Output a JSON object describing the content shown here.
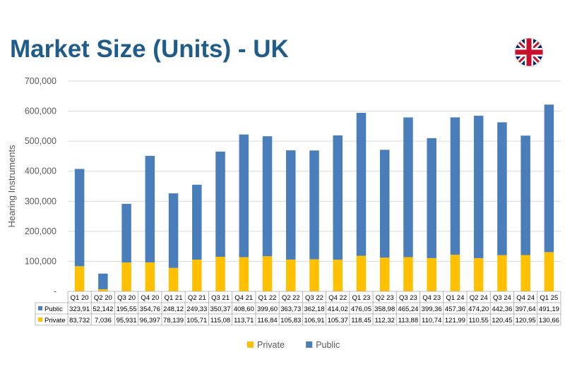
{
  "page": {
    "title": "Market Size (Units) - UK"
  },
  "colors": {
    "title": "#1f5c8a",
    "public": "#4a7ebb",
    "private": "#ffc000",
    "grid": "#d9d9d9"
  },
  "icons": {
    "flag": "uk-flag-icon"
  },
  "chart_data": {
    "type": "bar",
    "stacked": true,
    "title": "",
    "xlabel": "",
    "ylabel": "Hearing Instruments",
    "ylim": [
      0,
      700000
    ],
    "yticks": [
      0,
      100000,
      200000,
      300000,
      400000,
      500000,
      600000,
      700000
    ],
    "ytick_labels": [
      "-",
      "100,000",
      "200,000",
      "300,000",
      "400,000",
      "500,000",
      "600,000",
      "700,000"
    ],
    "grid": true,
    "legend": "bottom",
    "data_table": true,
    "categories": [
      "Q1 20",
      "Q2 20",
      "Q3 20",
      "Q4 20",
      "Q1 21",
      "Q2 21",
      "Q3 21",
      "Q4 21",
      "Q1 22",
      "Q2 22",
      "Q3 22",
      "Q4 22",
      "Q1 23",
      "Q2 23",
      "Q3 23",
      "Q4 23",
      "Q1 24",
      "Q2 24",
      "Q3 24",
      "Q4 24",
      "Q1 25"
    ],
    "series": [
      {
        "name": "Private",
        "color": "#ffc000",
        "values": [
          83732,
          7036,
          95931,
          96397,
          78139,
          105710,
          115080,
          113710,
          116840,
          105830,
          106910,
          105370,
          118450,
          112320,
          113880,
          110740,
          121990,
          110550,
          120450,
          120950,
          130660
        ],
        "labels": [
          "83,732",
          "7,036",
          "95,931",
          "96,397",
          "78,139",
          "105,71",
          "115,08",
          "113,71",
          "116,84",
          "105,83",
          "106,91",
          "105,37",
          "118,45",
          "112,32",
          "113,88",
          "110,74",
          "121,99",
          "110,55",
          "120,45",
          "120,95",
          "130,66"
        ]
      },
      {
        "name": "Public",
        "color": "#4a7ebb",
        "values": [
          323910,
          52142,
          195550,
          354760,
          248120,
          249330,
          350370,
          408600,
          399600,
          363730,
          362180,
          414020,
          476050,
          358980,
          465240,
          399360,
          457360,
          474200,
          442360,
          397640,
          491190
        ],
        "labels": [
          "323,91",
          "52,142",
          "195,55",
          "354,76",
          "248,12",
          "249,33",
          "350,37",
          "408,60",
          "399,60",
          "363,73",
          "362,18",
          "414,02",
          "476,05",
          "358,98",
          "465,24",
          "399,36",
          "457,36",
          "474,20",
          "442,36",
          "397,64",
          "491,19"
        ]
      }
    ],
    "table_rows": [
      {
        "name": "Public",
        "series_index": 1
      },
      {
        "name": "Private",
        "series_index": 0
      }
    ]
  }
}
